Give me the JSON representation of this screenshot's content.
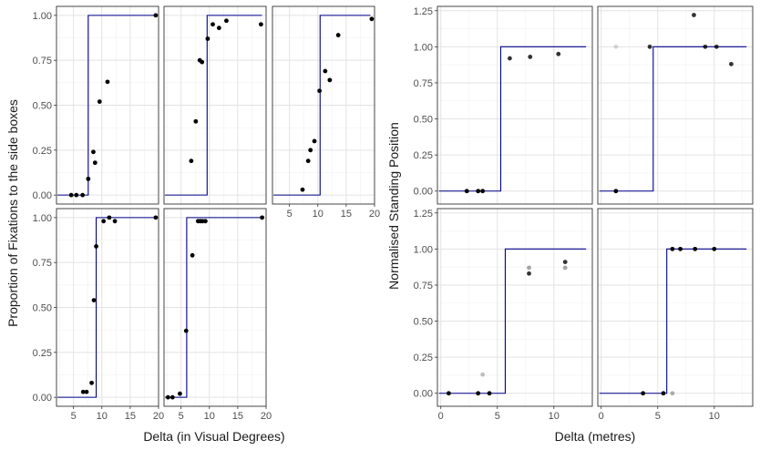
{
  "chart_data": [
    {
      "type": "scatter",
      "facet_grid": "2x3",
      "xlabel": "Delta (in Visual Degrees)",
      "ylabel": "Proportion of Fixations to the side boxes",
      "xlim": [
        2,
        20
      ],
      "ylim": [
        -0.05,
        1.05
      ],
      "x_ticks": [
        5,
        10,
        15,
        20
      ],
      "y_ticks": [
        0,
        0.25,
        0.5,
        0.75,
        1
      ],
      "y_tick_labels": [
        "0.00",
        "0.25",
        "0.50",
        "0.75",
        "1.00"
      ],
      "grid": true,
      "line_color": "#00008b",
      "point_color": "#000000",
      "panels": [
        {
          "row": 0,
          "col": 0,
          "xlim": [
            2,
            20
          ],
          "threshold": 7.6,
          "points": [
            [
              4.6,
              0
            ],
            [
              5.5,
              0
            ],
            [
              6.6,
              0
            ],
            [
              7.6,
              0.09
            ],
            [
              8.5,
              0.24
            ],
            [
              8.8,
              0.18
            ],
            [
              9.6,
              0.52
            ],
            [
              11.0,
              0.63
            ],
            [
              19.5,
              1.0
            ]
          ]
        },
        {
          "row": 0,
          "col": 1,
          "xlim": [
            2,
            20
          ],
          "threshold": 9.6,
          "points": [
            [
              6.8,
              0.19
            ],
            [
              7.6,
              0.41
            ],
            [
              8.3,
              0.75
            ],
            [
              8.7,
              0.74
            ],
            [
              9.7,
              0.87
            ],
            [
              10.6,
              0.95
            ],
            [
              11.7,
              0.93
            ],
            [
              13.0,
              0.97
            ],
            [
              19.1,
              0.95
            ]
          ]
        },
        {
          "row": 0,
          "col": 2,
          "xlim": [
            2,
            20
          ],
          "threshold": 10.4,
          "points": [
            [
              7.3,
              0.03
            ],
            [
              8.3,
              0.19
            ],
            [
              8.7,
              0.25
            ],
            [
              9.4,
              0.3
            ],
            [
              10.3,
              0.58
            ],
            [
              11.3,
              0.69
            ],
            [
              12.1,
              0.64
            ],
            [
              13.6,
              0.89
            ],
            [
              19.5,
              0.98
            ]
          ]
        },
        {
          "row": 1,
          "col": 0,
          "xlim": [
            2,
            20
          ],
          "threshold": 9.0,
          "points": [
            [
              6.7,
              0.03
            ],
            [
              7.3,
              0.03
            ],
            [
              8.2,
              0.08
            ],
            [
              8.6,
              0.54
            ],
            [
              9.0,
              0.84
            ],
            [
              10.3,
              0.98
            ],
            [
              11.3,
              1.0
            ],
            [
              12.3,
              0.98
            ],
            [
              19.5,
              1.0
            ]
          ]
        },
        {
          "row": 1,
          "col": 1,
          "xlim": [
            2,
            20
          ],
          "threshold": 6.0,
          "points": [
            [
              2.7,
              0
            ],
            [
              3.5,
              0
            ],
            [
              4.8,
              0.02
            ],
            [
              5.9,
              0.37
            ],
            [
              7.0,
              0.79
            ],
            [
              8.0,
              0.98
            ],
            [
              8.4,
              0.98
            ],
            [
              8.8,
              0.98
            ],
            [
              9.3,
              0.98
            ],
            [
              19.3,
              1.0
            ]
          ]
        }
      ]
    },
    {
      "type": "scatter",
      "facet_grid": "2x2",
      "xlabel": "Delta (metres)",
      "ylabel": "Normalised Standing Position",
      "xlim": [
        -0.3,
        13.4
      ],
      "ylim": [
        -0.09,
        1.28
      ],
      "x_ticks": [
        0,
        5,
        10
      ],
      "y_ticks": [
        0,
        0.25,
        0.5,
        0.75,
        1,
        1.25
      ],
      "y_tick_labels": [
        "0.00",
        "0.25",
        "0.50",
        "0.75",
        "1.00",
        "1.25"
      ],
      "grid": true,
      "line_color": "#00008b",
      "panels": [
        {
          "row": 0,
          "col": 0,
          "threshold": 5.3,
          "points": [
            [
              2.3,
              0,
              1.0
            ],
            [
              3.3,
              0,
              1.0
            ],
            [
              3.7,
              0,
              1.0
            ],
            [
              6.1,
              0.92,
              0.8
            ],
            [
              7.9,
              0.93,
              0.8
            ],
            [
              10.4,
              0.95,
              0.8
            ]
          ]
        },
        {
          "row": 0,
          "col": 1,
          "threshold": 4.6,
          "points": [
            [
              1.3,
              0,
              1.0
            ],
            [
              1.3,
              1.0,
              0.15
            ],
            [
              4.3,
              1.0,
              0.8
            ],
            [
              8.2,
              1.22,
              0.8
            ],
            [
              9.2,
              1.0,
              0.8
            ],
            [
              10.2,
              1.0,
              0.8
            ],
            [
              11.5,
              0.88,
              0.8
            ]
          ]
        },
        {
          "row": 1,
          "col": 0,
          "threshold": 5.7,
          "points": [
            [
              0.7,
              0,
              1.0
            ],
            [
              3.3,
              0,
              1.0
            ],
            [
              3.7,
              0.13,
              0.25
            ],
            [
              4.3,
              0,
              1.0
            ],
            [
              7.8,
              0.87,
              0.35
            ],
            [
              7.8,
              0.83,
              0.8
            ],
            [
              11.0,
              0.87,
              0.35
            ],
            [
              11.0,
              0.91,
              0.8
            ]
          ]
        },
        {
          "row": 1,
          "col": 1,
          "threshold": 5.8,
          "points": [
            [
              3.7,
              0,
              1.0
            ],
            [
              5.5,
              0,
              1.0
            ],
            [
              6.3,
              0,
              0.3
            ],
            [
              6.3,
              1.0,
              1.0
            ],
            [
              7.0,
              1.0,
              1.0
            ],
            [
              8.3,
              1.0,
              1.0
            ],
            [
              10.0,
              1.0,
              1.0
            ]
          ]
        }
      ]
    }
  ]
}
